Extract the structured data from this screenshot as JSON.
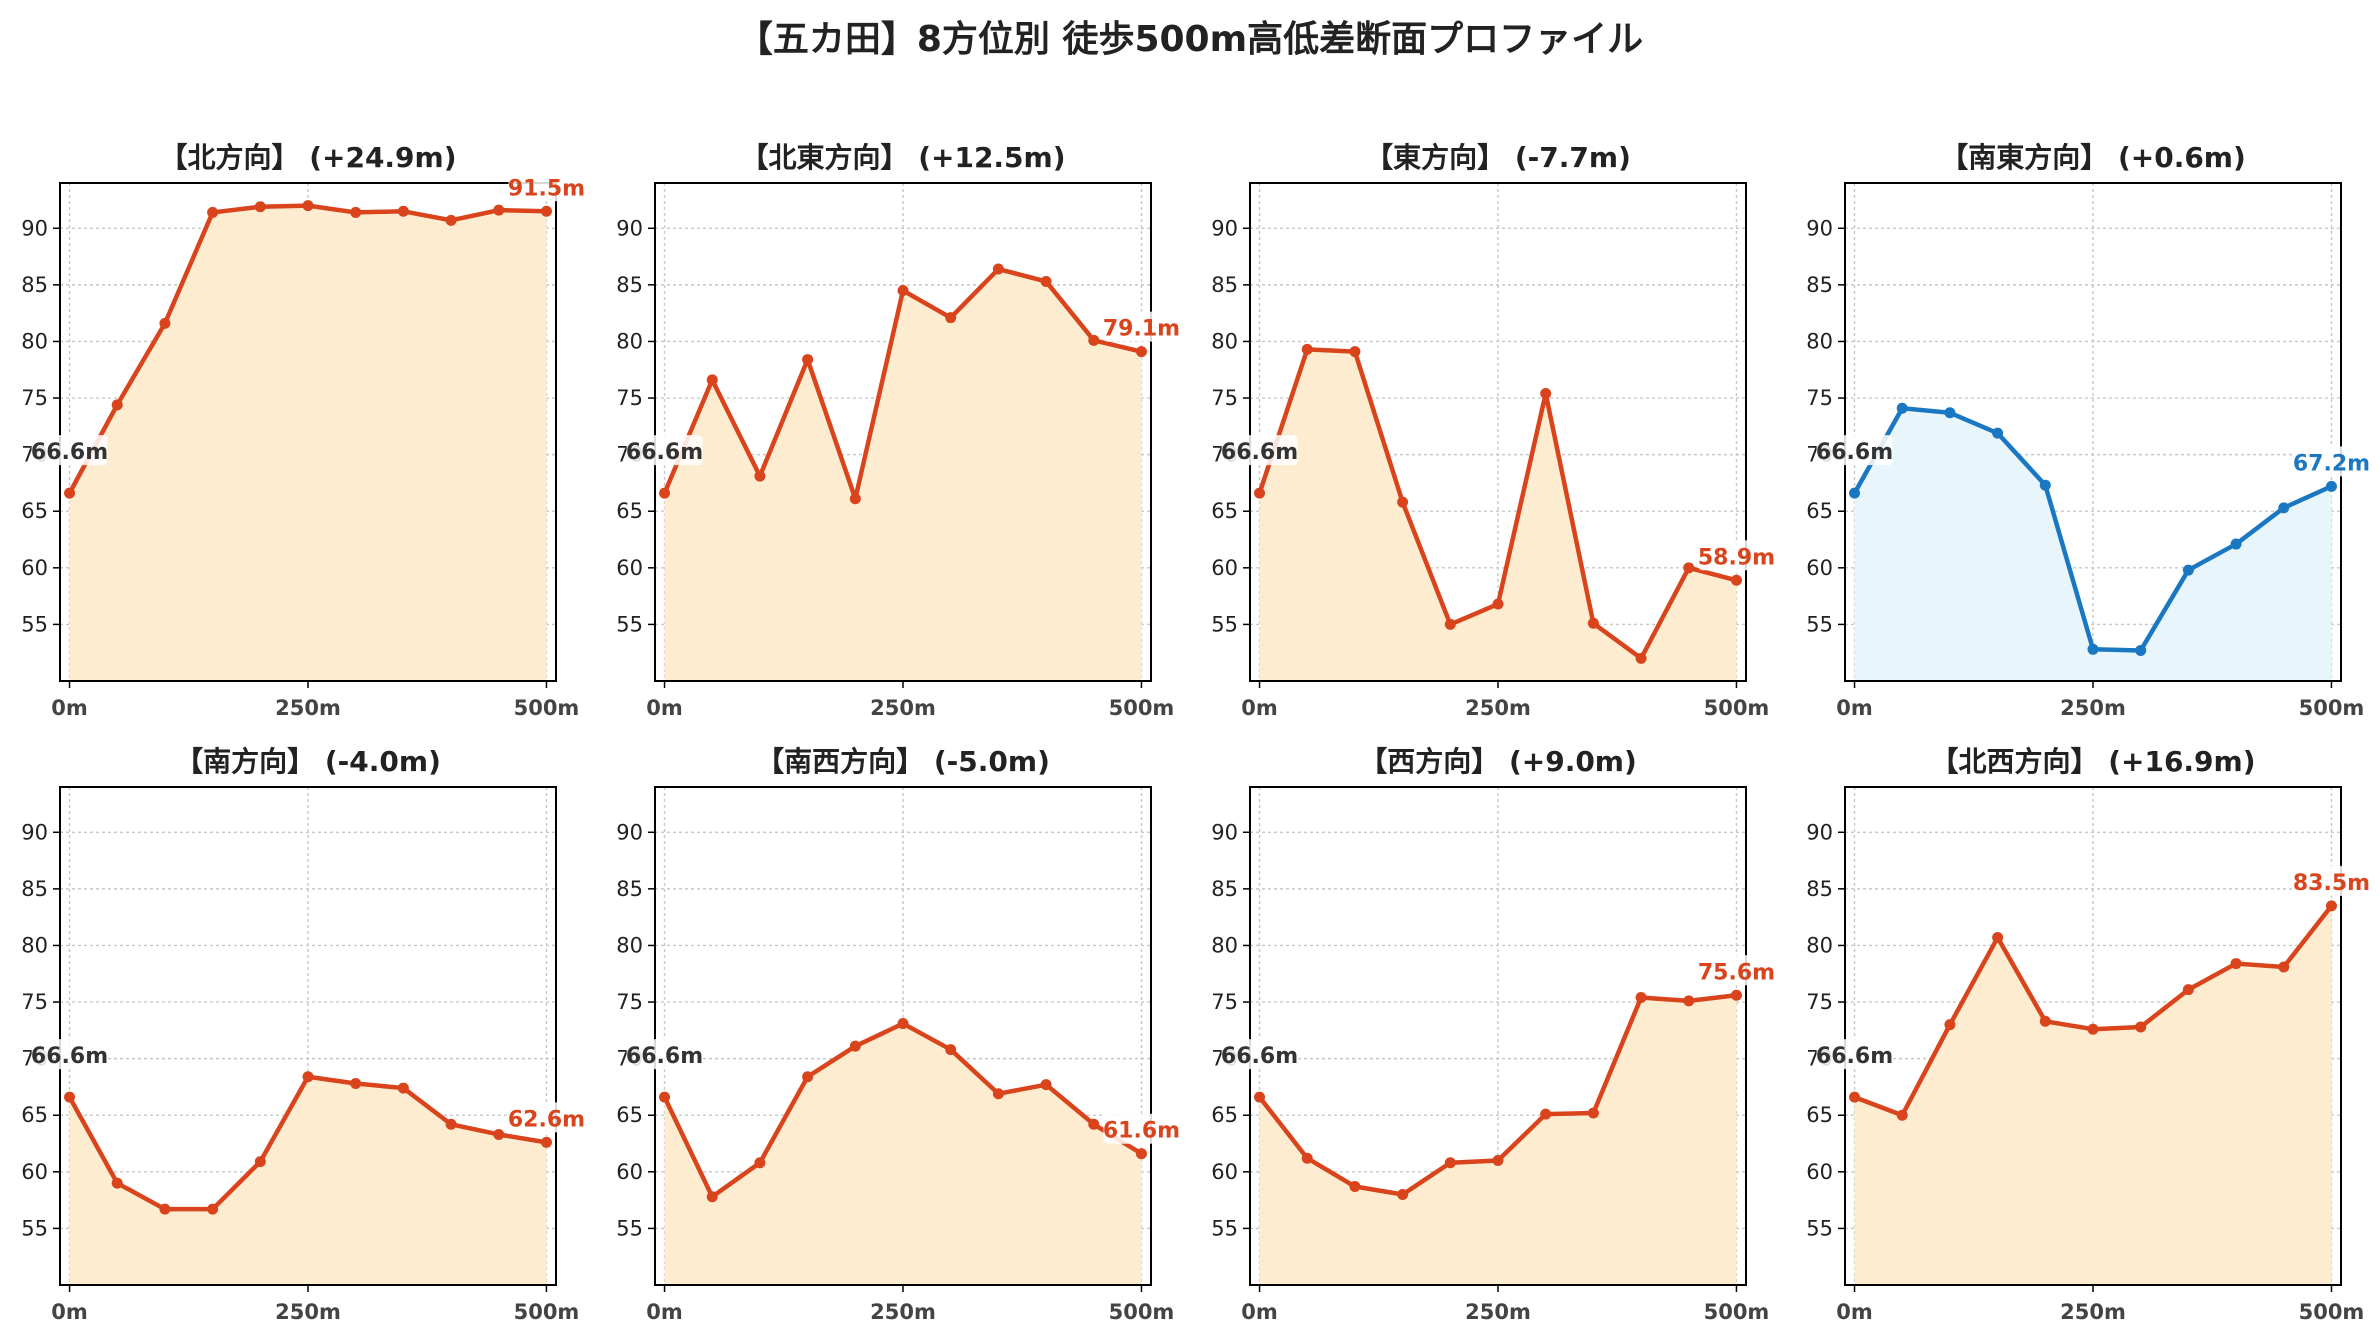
{
  "title": "【五カ田】8方位別 徒歩500m高低差断面プロファイル",
  "colors": {
    "up_line": "#d9441c",
    "up_fill": "#fdeccf",
    "flat_line": "#1a78c2",
    "flat_fill": "#e8f5fb",
    "start_label": "#333333",
    "grid": "#c8c8c8"
  },
  "chart_data": [
    {
      "type": "area",
      "title": "【北方向】 (+24.9m)",
      "x": [
        0,
        50,
        100,
        150,
        200,
        250,
        300,
        350,
        400,
        450,
        500
      ],
      "values": [
        66.6,
        74.4,
        81.6,
        91.4,
        91.9,
        92.0,
        91.4,
        91.5,
        90.7,
        91.6,
        91.5
      ],
      "start_label": "66.6m",
      "end_label": "91.5m",
      "color": "up",
      "xtick_labels": [
        "0m",
        "250m",
        "500m"
      ],
      "ytick_labels": [
        "55",
        "60",
        "65",
        "70",
        "75",
        "80",
        "85",
        "90"
      ],
      "xlim": [
        -10,
        510
      ],
      "ylim": [
        50,
        94
      ],
      "grid": true
    },
    {
      "type": "area",
      "title": "【北東方向】 (+12.5m)",
      "x": [
        0,
        50,
        100,
        150,
        200,
        250,
        300,
        350,
        400,
        450,
        500
      ],
      "values": [
        66.6,
        76.6,
        68.1,
        78.4,
        66.1,
        84.5,
        82.1,
        86.4,
        85.3,
        80.1,
        79.1
      ],
      "start_label": "66.6m",
      "end_label": "79.1m",
      "color": "up",
      "xtick_labels": [
        "0m",
        "250m",
        "500m"
      ],
      "ytick_labels": [
        "55",
        "60",
        "65",
        "70",
        "75",
        "80",
        "85",
        "90"
      ],
      "xlim": [
        -10,
        510
      ],
      "ylim": [
        50,
        94
      ],
      "grid": true
    },
    {
      "type": "area",
      "title": "【東方向】 (-7.7m)",
      "x": [
        0,
        50,
        100,
        150,
        200,
        250,
        300,
        350,
        400,
        450,
        500
      ],
      "values": [
        66.6,
        79.3,
        79.1,
        65.8,
        55.0,
        56.8,
        75.4,
        55.1,
        52.0,
        60.0,
        58.9
      ],
      "start_label": "66.6m",
      "end_label": "58.9m",
      "color": "up",
      "xtick_labels": [
        "0m",
        "250m",
        "500m"
      ],
      "ytick_labels": [
        "55",
        "60",
        "65",
        "70",
        "75",
        "80",
        "85",
        "90"
      ],
      "xlim": [
        -10,
        510
      ],
      "ylim": [
        50,
        94
      ],
      "grid": true
    },
    {
      "type": "area",
      "title": "【南東方向】 (+0.6m)",
      "x": [
        0,
        50,
        100,
        150,
        200,
        250,
        300,
        350,
        400,
        450,
        500
      ],
      "values": [
        66.6,
        74.1,
        73.7,
        71.9,
        67.3,
        52.8,
        52.7,
        59.8,
        62.1,
        65.3,
        67.2
      ],
      "start_label": "66.6m",
      "end_label": "67.2m",
      "color": "flat",
      "xtick_labels": [
        "0m",
        "250m",
        "500m"
      ],
      "ytick_labels": [
        "55",
        "60",
        "65",
        "70",
        "75",
        "80",
        "85",
        "90"
      ],
      "xlim": [
        -10,
        510
      ],
      "ylim": [
        50,
        94
      ],
      "grid": true
    },
    {
      "type": "area",
      "title": "【南方向】 (-4.0m)",
      "x": [
        0,
        50,
        100,
        150,
        200,
        250,
        300,
        350,
        400,
        450,
        500
      ],
      "values": [
        66.6,
        59.0,
        56.7,
        56.7,
        60.9,
        68.4,
        67.8,
        67.4,
        64.2,
        63.3,
        62.6
      ],
      "start_label": "66.6m",
      "end_label": "62.6m",
      "color": "up",
      "xtick_labels": [
        "0m",
        "250m",
        "500m"
      ],
      "ytick_labels": [
        "55",
        "60",
        "65",
        "70",
        "75",
        "80",
        "85",
        "90"
      ],
      "xlim": [
        -10,
        510
      ],
      "ylim": [
        50,
        94
      ],
      "grid": true
    },
    {
      "type": "area",
      "title": "【南西方向】 (-5.0m)",
      "x": [
        0,
        50,
        100,
        150,
        200,
        250,
        300,
        350,
        400,
        450,
        500
      ],
      "values": [
        66.6,
        57.8,
        60.8,
        68.4,
        71.1,
        73.1,
        70.8,
        66.9,
        67.7,
        64.2,
        61.6
      ],
      "start_label": "66.6m",
      "end_label": "61.6m",
      "color": "up",
      "xtick_labels": [
        "0m",
        "250m",
        "500m"
      ],
      "ytick_labels": [
        "55",
        "60",
        "65",
        "70",
        "75",
        "80",
        "85",
        "90"
      ],
      "xlim": [
        -10,
        510
      ],
      "ylim": [
        50,
        94
      ],
      "grid": true
    },
    {
      "type": "area",
      "title": "【西方向】 (+9.0m)",
      "x": [
        0,
        50,
        100,
        150,
        200,
        250,
        300,
        350,
        400,
        450,
        500
      ],
      "values": [
        66.6,
        61.2,
        58.7,
        58.0,
        60.8,
        61.0,
        65.1,
        65.2,
        75.4,
        75.1,
        75.6
      ],
      "start_label": "66.6m",
      "end_label": "75.6m",
      "color": "up",
      "xtick_labels": [
        "0m",
        "250m",
        "500m"
      ],
      "ytick_labels": [
        "55",
        "60",
        "65",
        "70",
        "75",
        "80",
        "85",
        "90"
      ],
      "xlim": [
        -10,
        510
      ],
      "ylim": [
        50,
        94
      ],
      "grid": true
    },
    {
      "type": "area",
      "title": "【北西方向】 (+16.9m)",
      "x": [
        0,
        50,
        100,
        150,
        200,
        250,
        300,
        350,
        400,
        450,
        500
      ],
      "values": [
        66.6,
        65.0,
        73.0,
        80.7,
        73.3,
        72.6,
        72.8,
        76.1,
        78.4,
        78.1,
        83.5
      ],
      "start_label": "66.6m",
      "end_label": "83.5m",
      "color": "up",
      "xtick_labels": [
        "0m",
        "250m",
        "500m"
      ],
      "ytick_labels": [
        "55",
        "60",
        "65",
        "70",
        "75",
        "80",
        "85",
        "90"
      ],
      "xlim": [
        -10,
        510
      ],
      "ylim": [
        50,
        94
      ],
      "grid": true
    }
  ]
}
